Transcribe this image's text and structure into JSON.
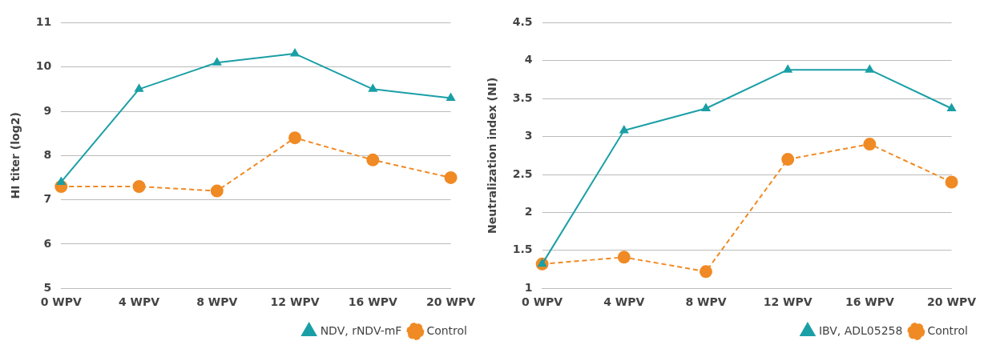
{
  "chart_data": [
    {
      "type": "line",
      "ylabel": "HI titer (log2)",
      "categories": [
        "0 WPV",
        "4 WPV",
        "8 WPV",
        "12 WPV",
        "16 WPV",
        "20 WPV"
      ],
      "ylim": [
        5,
        11
      ],
      "yticks": [
        5,
        6,
        7,
        8,
        9,
        10,
        11
      ],
      "grid": "y",
      "legend": "bottom right",
      "series": [
        {
          "name": "NDV, rNDV-mF",
          "color": "#1a9fa6",
          "values": [
            7.4,
            9.5,
            10.1,
            10.3,
            9.5,
            9.3
          ],
          "marker": "triangle",
          "line_style": "solid"
        },
        {
          "name": "Control",
          "color": "#f08a24",
          "values": [
            7.3,
            7.3,
            7.2,
            8.4,
            7.9,
            7.5
          ],
          "marker": "circle",
          "line_style": "dashed"
        }
      ]
    },
    {
      "type": "line",
      "ylabel": "Neutralization index (NI)",
      "categories": [
        "0 WPV",
        "4 WPV",
        "8 WPV",
        "12 WPV",
        "16 WPV",
        "20 WPV"
      ],
      "ylim": [
        1,
        4.5
      ],
      "yticks": [
        1,
        1.5,
        2,
        2.5,
        3,
        3.5,
        4,
        4.5
      ],
      "grid": "y",
      "legend": "bottom right",
      "series": [
        {
          "name": "IBV, ADL05258",
          "color": "#1a9fa6",
          "values": [
            1.32,
            3.08,
            3.37,
            3.88,
            3.88,
            3.37
          ],
          "marker": "triangle",
          "line_style": "solid"
        },
        {
          "name": "Control",
          "color": "#f08a24",
          "values": [
            1.32,
            1.41,
            1.22,
            2.7,
            2.9,
            2.4
          ],
          "marker": "circle",
          "line_style": "dashed"
        }
      ]
    }
  ]
}
